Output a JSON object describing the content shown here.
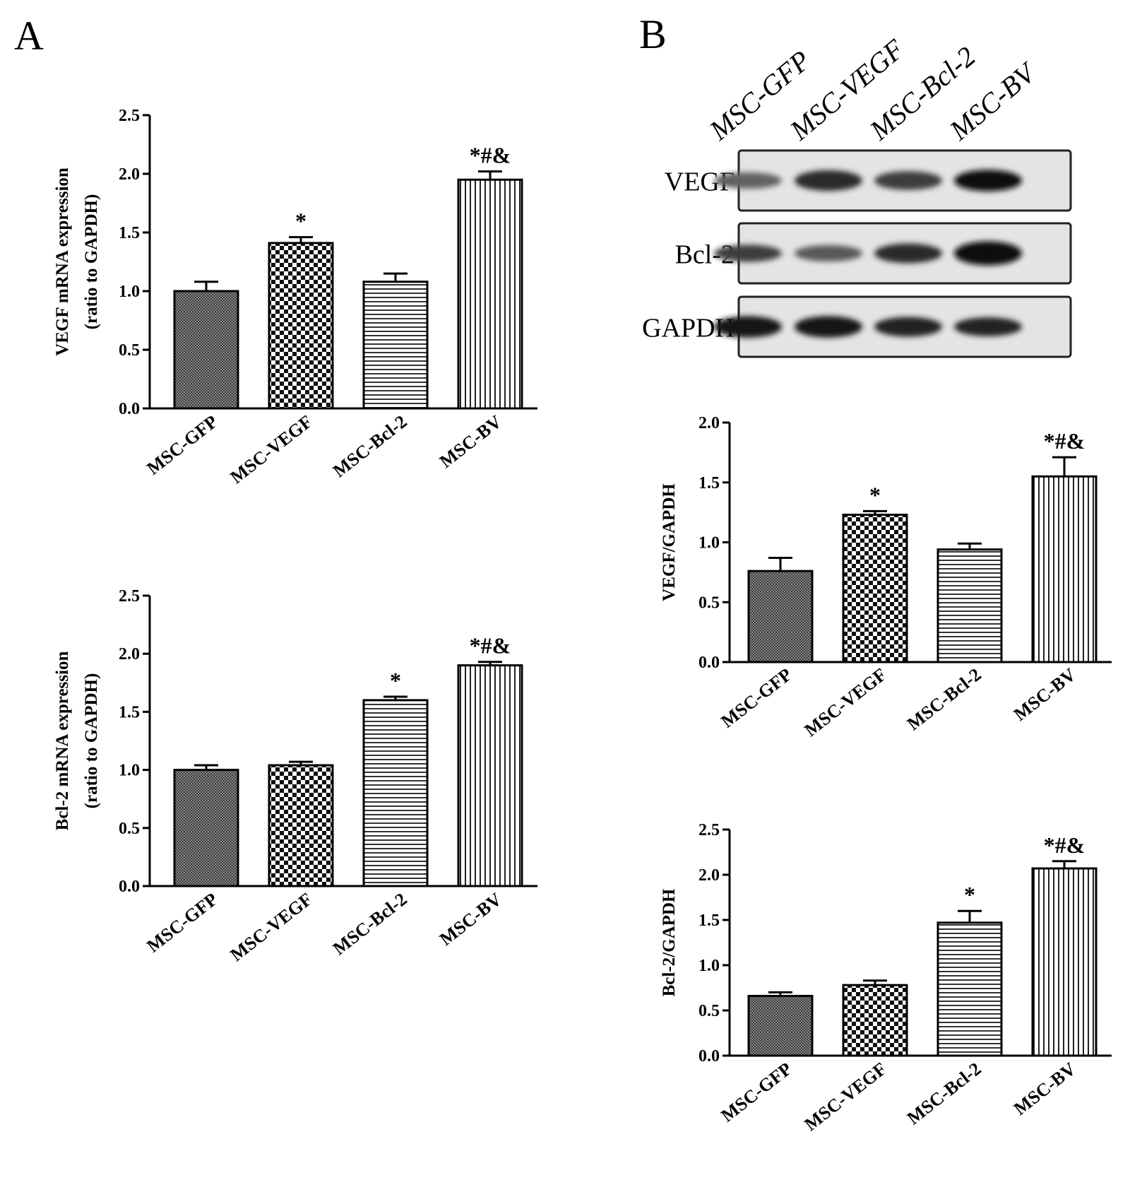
{
  "panels": {
    "a": {
      "label": "A"
    },
    "b": {
      "label": "B"
    }
  },
  "blot": {
    "lanes": [
      "MSC-GFP",
      "MSC-VEGF",
      "MSC-Bcl-2",
      "MSC-BV"
    ],
    "rows": [
      {
        "label": "VEGF",
        "intensity": [
          0.55,
          0.85,
          0.75,
          1.0
        ],
        "thickness": [
          0.55,
          0.8,
          0.7,
          0.85
        ]
      },
      {
        "label": "Bcl-2",
        "intensity": [
          0.75,
          0.6,
          0.85,
          1.0
        ],
        "thickness": [
          0.6,
          0.55,
          0.75,
          1.0
        ]
      },
      {
        "label": "GAPDH",
        "intensity": [
          0.95,
          0.95,
          0.9,
          0.9
        ],
        "thickness": [
          0.85,
          0.85,
          0.75,
          0.7
        ]
      }
    ]
  },
  "colors": {
    "ink": "#000000",
    "background": "#ffffff"
  },
  "chart_data": [
    {
      "id": "a-vegf",
      "type": "bar",
      "categories": [
        "MSC-GFP",
        "MSC-VEGF",
        "MSC-Bcl-2",
        "MSC-BV"
      ],
      "values": [
        1.0,
        1.41,
        1.08,
        1.95
      ],
      "errors": [
        0.08,
        0.05,
        0.07,
        0.07
      ],
      "annotations": [
        "",
        "*",
        "",
        "*#&"
      ],
      "patterns": [
        "fine",
        "checker",
        "horizontal",
        "vertical"
      ],
      "ylabel_lines": [
        "VEGF mRNA expression",
        "(ratio to GAPDH)"
      ],
      "yticks": [
        "0.0",
        "0.5",
        "1.0",
        "1.5",
        "2.0",
        "2.5"
      ],
      "ylim": [
        0,
        2.5
      ]
    },
    {
      "id": "a-bcl2",
      "type": "bar",
      "categories": [
        "MSC-GFP",
        "MSC-VEGF",
        "MSC-Bcl-2",
        "MSC-BV"
      ],
      "values": [
        1.0,
        1.04,
        1.6,
        1.9
      ],
      "errors": [
        0.04,
        0.03,
        0.03,
        0.03
      ],
      "annotations": [
        "",
        "",
        "*",
        "*#&"
      ],
      "patterns": [
        "fine",
        "checker",
        "horizontal",
        "vertical"
      ],
      "ylabel_lines": [
        "Bcl-2 mRNA expression",
        "(ratio to GAPDH)"
      ],
      "yticks": [
        "0.0",
        "0.5",
        "1.0",
        "1.5",
        "2.0",
        "2.5"
      ],
      "ylim": [
        0,
        2.5
      ]
    },
    {
      "id": "b-vegf",
      "type": "bar",
      "categories": [
        "MSC-GFP",
        "MSC-VEGF",
        "MSC-Bcl-2",
        "MSC-BV"
      ],
      "values": [
        0.76,
        1.23,
        0.94,
        1.55
      ],
      "errors": [
        0.11,
        0.03,
        0.05,
        0.16
      ],
      "annotations": [
        "",
        "*",
        "",
        "*#&"
      ],
      "patterns": [
        "fine",
        "checker",
        "horizontal",
        "vertical"
      ],
      "ylabel_lines": [
        "VEGF/GAPDH"
      ],
      "yticks": [
        "0.0",
        "0.5",
        "1.0",
        "1.5",
        "2.0"
      ],
      "ylim": [
        0,
        2.0
      ]
    },
    {
      "id": "b-bcl2",
      "type": "bar",
      "categories": [
        "MSC-GFP",
        "MSC-VEGF",
        "MSC-Bcl-2",
        "MSC-BV"
      ],
      "values": [
        0.66,
        0.78,
        1.47,
        2.07
      ],
      "errors": [
        0.04,
        0.05,
        0.13,
        0.08
      ],
      "annotations": [
        "",
        "",
        "*",
        "*#&"
      ],
      "patterns": [
        "fine",
        "checker",
        "horizontal",
        "vertical"
      ],
      "ylabel_lines": [
        "Bcl-2/GAPDH"
      ],
      "yticks": [
        "0.0",
        "0.5",
        "1.0",
        "1.5",
        "2.0",
        "2.5"
      ],
      "ylim": [
        0,
        2.5
      ]
    }
  ]
}
